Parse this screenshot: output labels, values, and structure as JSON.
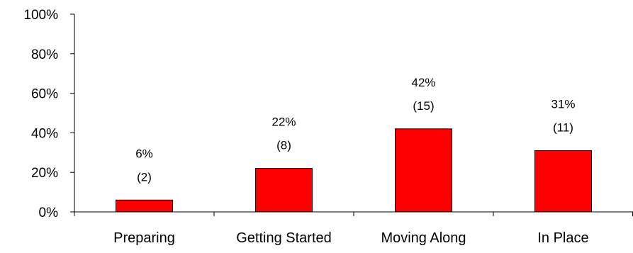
{
  "chart_data": {
    "type": "bar",
    "categories": [
      "Preparing",
      "Getting Started",
      "Moving Along",
      "In Place"
    ],
    "values": [
      6,
      22,
      42,
      31
    ],
    "counts": [
      2,
      8,
      15,
      11
    ],
    "value_labels": [
      "6%",
      "22%",
      "42%",
      "31%"
    ],
    "count_labels": [
      "(2)",
      "(8)",
      "(15)",
      "(11)"
    ],
    "ylim": [
      0,
      100
    ],
    "yticks": [
      0,
      20,
      40,
      60,
      80,
      100
    ],
    "ytick_labels": [
      "0%",
      "20%",
      "40%",
      "60%",
      "80%",
      "100%"
    ],
    "title": "",
    "xlabel": "",
    "ylabel": "",
    "grid": false,
    "legend": "none",
    "bar_color": "#ff0000",
    "bar_edge_color": "#000000"
  }
}
